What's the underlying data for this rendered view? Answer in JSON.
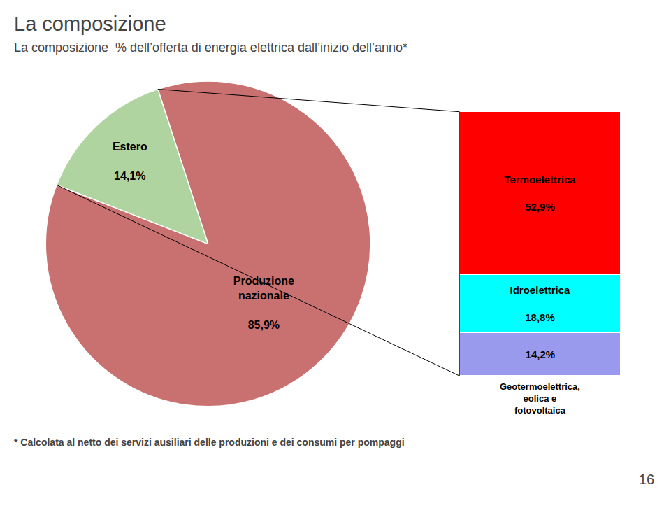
{
  "chart_data": [
    {
      "type": "pie",
      "title": "La composizione",
      "subtitle": "La composizione  % dell’offerta di energia elettrica dall’inizio dell’anno*",
      "categories": [
        "Produzione nazionale",
        "Estero"
      ],
      "values": [
        85.9,
        14.1
      ],
      "value_labels": [
        "85,9%",
        "14,1%"
      ],
      "colors": [
        "#C97070",
        "#B0D4A0"
      ],
      "data_labels": true,
      "annotations": [
        "* Calcolata al netto dei servizi ausiliari delle produzioni e dei consumi per pompaggi",
        "16"
      ]
    },
    {
      "type": "bar",
      "stacked": true,
      "categories": [
        null
      ],
      "series": [
        {
          "name": "Geotermoelettrica, eolica e fotovoltaica",
          "color": "#9999EE",
          "values": [
            14.2
          ],
          "value_labels": [
            "14,2%"
          ]
        },
        {
          "name": "Idroelettrica",
          "color": "#00FFFF",
          "values": [
            18.8
          ],
          "value_labels": [
            "18,8%"
          ]
        },
        {
          "name": "Termoelettrica",
          "color": "#FF0000",
          "values": [
            52.9
          ],
          "value_labels": [
            "52,9%"
          ]
        }
      ],
      "ylim": [
        0,
        85.9
      ],
      "tick_labels": false,
      "data_labels": true
    }
  ]
}
